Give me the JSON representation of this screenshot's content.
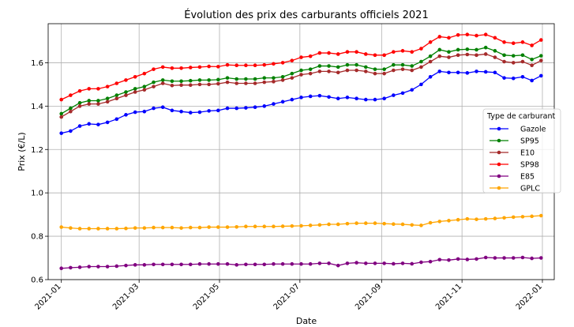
{
  "chart_data": {
    "type": "line",
    "title": "Évolution des prix des carburants officiels 2021",
    "xlabel": "Date",
    "ylabel": "Prix (€/L)",
    "xlim": [
      "2020-12-22",
      "2022-01-10"
    ],
    "ylim": [
      0.6,
      1.78
    ],
    "x_ticks": [
      "2021-01-01",
      "2021-03-01",
      "2021-05-01",
      "2021-07-01",
      "2021-09-01",
      "2021-11-01",
      "2022-01-01"
    ],
    "x_tick_labels": [
      "2021-01",
      "2021-03",
      "2021-05",
      "2021-07",
      "2021-09",
      "2021-11",
      "2022-01"
    ],
    "y_ticks": [
      0.6,
      0.8,
      1.0,
      1.2,
      1.4,
      1.6
    ],
    "y_tick_labels": [
      "0.6",
      "0.8",
      "1.0",
      "1.2",
      "1.4",
      "1.6"
    ],
    "grid": true,
    "legend_title": "Type de carburant",
    "legend_position": "center-right",
    "x": [
      "2021-01-01",
      "2021-01-08",
      "2021-01-15",
      "2021-01-22",
      "2021-01-29",
      "2021-02-05",
      "2021-02-12",
      "2021-02-19",
      "2021-02-26",
      "2021-03-05",
      "2021-03-12",
      "2021-03-19",
      "2021-03-26",
      "2021-04-02",
      "2021-04-09",
      "2021-04-16",
      "2021-04-23",
      "2021-04-30",
      "2021-05-07",
      "2021-05-14",
      "2021-05-21",
      "2021-05-28",
      "2021-06-04",
      "2021-06-11",
      "2021-06-18",
      "2021-06-25",
      "2021-07-02",
      "2021-07-09",
      "2021-07-16",
      "2021-07-23",
      "2021-07-30",
      "2021-08-06",
      "2021-08-13",
      "2021-08-20",
      "2021-08-27",
      "2021-09-03",
      "2021-09-10",
      "2021-09-17",
      "2021-09-24",
      "2021-10-01",
      "2021-10-08",
      "2021-10-15",
      "2021-10-22",
      "2021-10-29",
      "2021-11-05",
      "2021-11-12",
      "2021-11-19",
      "2021-11-26",
      "2021-12-03",
      "2021-12-10",
      "2021-12-17",
      "2021-12-24",
      "2021-12-31"
    ],
    "series": [
      {
        "name": "Gazole",
        "color": "#0000ff",
        "values": [
          1.275,
          1.285,
          1.308,
          1.318,
          1.315,
          1.325,
          1.34,
          1.36,
          1.372,
          1.375,
          1.39,
          1.395,
          1.38,
          1.375,
          1.37,
          1.372,
          1.378,
          1.38,
          1.39,
          1.39,
          1.392,
          1.395,
          1.4,
          1.41,
          1.42,
          1.43,
          1.44,
          1.445,
          1.448,
          1.442,
          1.435,
          1.44,
          1.435,
          1.43,
          1.43,
          1.435,
          1.45,
          1.46,
          1.475,
          1.5,
          1.535,
          1.56,
          1.555,
          1.555,
          1.553,
          1.56,
          1.558,
          1.555,
          1.53,
          1.528,
          1.535,
          1.518,
          1.54
        ]
      },
      {
        "name": "SP95",
        "color": "#008000",
        "values": [
          1.365,
          1.39,
          1.415,
          1.425,
          1.425,
          1.435,
          1.45,
          1.465,
          1.48,
          1.49,
          1.51,
          1.52,
          1.515,
          1.515,
          1.517,
          1.52,
          1.52,
          1.522,
          1.53,
          1.525,
          1.525,
          1.525,
          1.53,
          1.53,
          1.535,
          1.55,
          1.565,
          1.57,
          1.585,
          1.585,
          1.58,
          1.59,
          1.59,
          1.58,
          1.57,
          1.57,
          1.59,
          1.59,
          1.585,
          1.605,
          1.63,
          1.66,
          1.65,
          1.66,
          1.662,
          1.66,
          1.67,
          1.655,
          1.635,
          1.632,
          1.635,
          1.615,
          1.632
        ]
      },
      {
        "name": "E10",
        "color": "#a52a2a",
        "values": [
          1.35,
          1.375,
          1.4,
          1.41,
          1.41,
          1.42,
          1.435,
          1.45,
          1.465,
          1.475,
          1.49,
          1.505,
          1.495,
          1.497,
          1.497,
          1.5,
          1.5,
          1.503,
          1.51,
          1.505,
          1.505,
          1.505,
          1.51,
          1.513,
          1.52,
          1.53,
          1.545,
          1.55,
          1.56,
          1.56,
          1.555,
          1.565,
          1.565,
          1.56,
          1.55,
          1.55,
          1.565,
          1.57,
          1.565,
          1.58,
          1.605,
          1.63,
          1.625,
          1.635,
          1.638,
          1.635,
          1.64,
          1.625,
          1.605,
          1.6,
          1.605,
          1.588,
          1.61
        ]
      },
      {
        "name": "SP98",
        "color": "#ff0000",
        "values": [
          1.43,
          1.45,
          1.47,
          1.48,
          1.48,
          1.49,
          1.505,
          1.52,
          1.535,
          1.55,
          1.57,
          1.58,
          1.575,
          1.575,
          1.578,
          1.58,
          1.583,
          1.582,
          1.59,
          1.588,
          1.588,
          1.588,
          1.59,
          1.595,
          1.6,
          1.61,
          1.625,
          1.63,
          1.645,
          1.645,
          1.64,
          1.65,
          1.65,
          1.64,
          1.635,
          1.635,
          1.65,
          1.655,
          1.65,
          1.665,
          1.695,
          1.72,
          1.715,
          1.728,
          1.73,
          1.725,
          1.73,
          1.715,
          1.695,
          1.69,
          1.695,
          1.68,
          1.705
        ]
      },
      {
        "name": "E85",
        "color": "#800080",
        "values": [
          0.652,
          0.655,
          0.657,
          0.66,
          0.66,
          0.66,
          0.662,
          0.665,
          0.668,
          0.668,
          0.67,
          0.67,
          0.67,
          0.67,
          0.67,
          0.672,
          0.672,
          0.672,
          0.672,
          0.668,
          0.67,
          0.67,
          0.67,
          0.672,
          0.672,
          0.672,
          0.672,
          0.672,
          0.675,
          0.675,
          0.665,
          0.675,
          0.678,
          0.675,
          0.675,
          0.675,
          0.673,
          0.675,
          0.673,
          0.68,
          0.683,
          0.692,
          0.69,
          0.695,
          0.693,
          0.695,
          0.702,
          0.7,
          0.7,
          0.7,
          0.702,
          0.698,
          0.7
        ]
      },
      {
        "name": "GPLC",
        "color": "#ffa500",
        "values": [
          0.842,
          0.838,
          0.835,
          0.835,
          0.835,
          0.835,
          0.835,
          0.836,
          0.838,
          0.838,
          0.84,
          0.84,
          0.84,
          0.838,
          0.84,
          0.84,
          0.842,
          0.842,
          0.842,
          0.843,
          0.845,
          0.845,
          0.845,
          0.845,
          0.846,
          0.847,
          0.848,
          0.85,
          0.852,
          0.855,
          0.855,
          0.858,
          0.86,
          0.86,
          0.86,
          0.858,
          0.856,
          0.855,
          0.852,
          0.85,
          0.862,
          0.868,
          0.872,
          0.876,
          0.88,
          0.878,
          0.88,
          0.882,
          0.885,
          0.888,
          0.89,
          0.892,
          0.895
        ]
      }
    ]
  }
}
